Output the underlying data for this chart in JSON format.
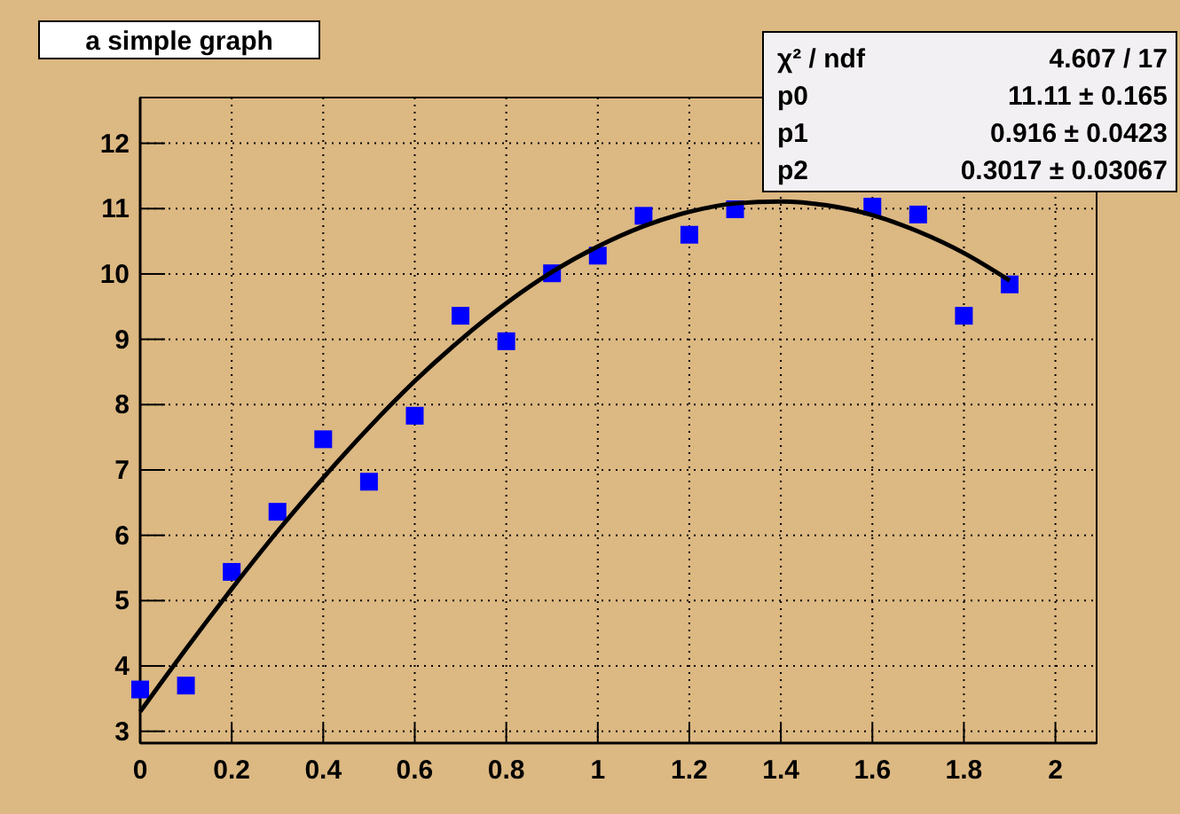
{
  "chart_data": {
    "type": "scatter",
    "title": "a simple graph",
    "annotations": [
      "χ² / ndf",
      "4.607 / 17",
      "p0",
      "11.11 ± 0.165",
      "p1",
      "0.916 ± 0.0423",
      "p2",
      "0.3017 ± 0.03067"
    ],
    "xlim": [
      0,
      2.09
    ],
    "ylim": [
      2.82,
      12.7
    ],
    "xticks": [
      0,
      0.2,
      0.4,
      0.6,
      0.8,
      1,
      1.2,
      1.4,
      1.6,
      1.8,
      2
    ],
    "yticks": [
      3,
      4,
      5,
      6,
      7,
      8,
      9,
      10,
      11,
      12
    ],
    "grid": true,
    "series": [
      {
        "color": "#0000ff",
        "marker": "square",
        "x": [
          0,
          0.1,
          0.2,
          0.3,
          0.4,
          0.5,
          0.6,
          0.7,
          0.8,
          0.9,
          1.0,
          1.1,
          1.2,
          1.3,
          1.6,
          1.7,
          1.8,
          1.9
        ],
        "values": [
          3.64,
          3.7,
          5.44,
          6.36,
          7.47,
          6.82,
          7.83,
          9.36,
          8.97,
          10.01,
          10.28,
          10.89,
          10.6,
          10.99,
          11.03,
          10.91,
          9.36,
          9.84
        ]
      },
      {
        "type": "line",
        "color": "#000000",
        "marker": "none",
        "x": [
          0,
          0.1,
          0.2,
          0.3,
          0.4,
          0.5,
          0.6,
          0.7,
          0.8,
          0.9,
          1.0,
          1.1,
          1.2,
          1.3,
          1.4,
          1.5,
          1.6,
          1.7,
          1.8,
          1.9
        ],
        "values": [
          3.3,
          4.26,
          5.18,
          6.06,
          6.88,
          7.65,
          8.36,
          8.99,
          9.55,
          10.03,
          10.42,
          10.73,
          10.95,
          11.08,
          11.11,
          11.05,
          10.9,
          10.65,
          10.32,
          9.9
        ]
      }
    ]
  }
}
